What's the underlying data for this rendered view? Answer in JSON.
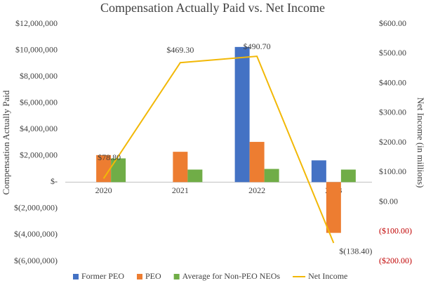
{
  "chart_data": {
    "type": "bar",
    "title": "Compensation Actually Paid vs. Net Income",
    "y_label": "Compensation Actually Paid",
    "y2_label": "Net Income (in millions)",
    "categories": [
      "2020",
      "2021",
      "2022",
      "2023"
    ],
    "series": [
      {
        "name": "Former PEO",
        "color": "#4472c4",
        "values": [
          null,
          null,
          10250000,
          1650000
        ]
      },
      {
        "name": "PEO",
        "color": "#ed7d31",
        "values": [
          2050000,
          2300000,
          3050000,
          -3850000
        ]
      },
      {
        "name": "Average for Non-PEO NEOs",
        "color": "#70ad47",
        "values": [
          1800000,
          950000,
          1000000,
          950000
        ]
      },
      {
        "name": "Net Income",
        "color": "#f2b807",
        "type": "line",
        "axis": "y2",
        "values": [
          78.8,
          469.3,
          490.7,
          -138.4
        ],
        "value_labels": [
          "$78.80",
          "$469.30",
          "$490.70",
          "$(138.40)"
        ]
      }
    ],
    "ylim": [
      -6000000,
      12000000
    ],
    "yticks": [
      {
        "value": -6000000,
        "label": "$(6,000,000)"
      },
      {
        "value": -4000000,
        "label": "$(4,000,000)"
      },
      {
        "value": -2000000,
        "label": "$(2,000,000)"
      },
      {
        "value": 0,
        "label": "$-"
      },
      {
        "value": 2000000,
        "label": "$2,000,000"
      },
      {
        "value": 4000000,
        "label": "$4,000,000"
      },
      {
        "value": 6000000,
        "label": "$6,000,000"
      },
      {
        "value": 8000000,
        "label": "$8,000,000"
      },
      {
        "value": 10000000,
        "label": "$10,000,000"
      },
      {
        "value": 12000000,
        "label": "$12,000,000"
      }
    ],
    "y2lim": [
      -200,
      600
    ],
    "y2ticks": [
      {
        "value": -200,
        "label": "($200.00)"
      },
      {
        "value": -100,
        "label": "($100.00)"
      },
      {
        "value": 0,
        "label": "$0.00"
      },
      {
        "value": 100,
        "label": "$100.00"
      },
      {
        "value": 200,
        "label": "$200.00"
      },
      {
        "value": 300,
        "label": "$300.00"
      },
      {
        "value": 400,
        "label": "$400.00"
      },
      {
        "value": 500,
        "label": "$500.00"
      },
      {
        "value": 600,
        "label": "$600.00"
      }
    ],
    "grid": false,
    "legend": "bottom"
  }
}
